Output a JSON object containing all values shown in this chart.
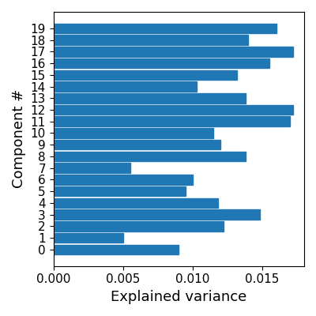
{
  "components": [
    0,
    1,
    2,
    3,
    4,
    5,
    6,
    7,
    8,
    9,
    10,
    11,
    12,
    13,
    14,
    15,
    16,
    17,
    18,
    19
  ],
  "values": [
    0.009,
    0.005,
    0.0122,
    0.0148,
    0.0118,
    0.0095,
    0.01,
    0.0055,
    0.0138,
    0.012,
    0.0115,
    0.017,
    0.0172,
    0.0138,
    0.0103,
    0.0132,
    0.0155,
    0.0172,
    0.014,
    0.016
  ],
  "bar_color": "#1f77b4",
  "xlabel": "Explained variance",
  "ylabel": "Component #",
  "xlim": [
    0,
    0.018
  ],
  "figsize": [
    4.0,
    4.0
  ],
  "dpi": 100,
  "xlabel_fontsize": 13,
  "ylabel_fontsize": 13,
  "tick_fontsize": 11
}
